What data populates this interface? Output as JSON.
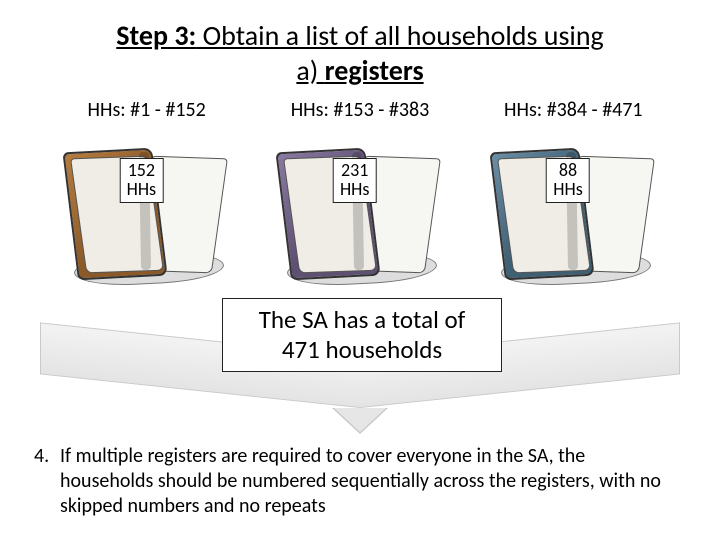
{
  "title": {
    "step_bold": "Step 3:",
    "rest1": " Obtain a list of all households using",
    "line2_prefix": "a) ",
    "line2_bold": "registers"
  },
  "books": [
    {
      "range": "HHs: #1 - #152",
      "count_line1": "152",
      "count_line2": "HHs",
      "cover_color": "#8c5a28",
      "cover_highlight": "#b57c3f"
    },
    {
      "range": "HHs: #153 - #383",
      "count_line1": "231",
      "count_line2": "HHs",
      "cover_color": "#5e5072",
      "cover_highlight": "#8a7aa3"
    },
    {
      "range": "HHs: #384 - #471",
      "count_line1": "88",
      "count_line2": "HHs",
      "cover_color": "#3f5f73",
      "cover_highlight": "#6a8ea6"
    }
  ],
  "total_box": {
    "line1": "The SA has a total of",
    "line2": "471 households"
  },
  "note": {
    "number": "4.",
    "text": "If multiple registers are required to cover everyone in the SA, the households should be numbered sequentially across the registers, with no skipped numbers and no repeats"
  }
}
